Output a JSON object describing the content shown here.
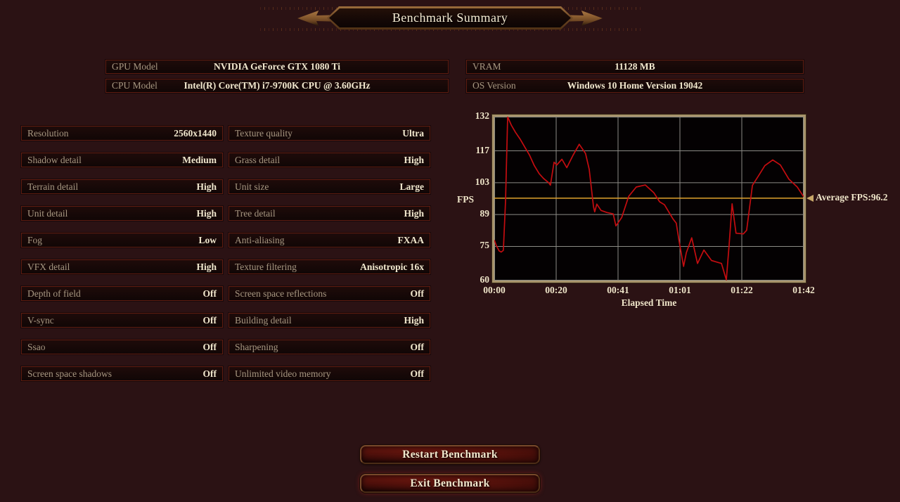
{
  "header": {
    "title": "Benchmark Summary"
  },
  "system_info": {
    "left": [
      {
        "label": "GPU Model",
        "value": "NVIDIA GeForce GTX 1080 Ti"
      },
      {
        "label": "CPU Model",
        "value": "Intel(R) Core(TM) i7-9700K CPU @ 3.60GHz"
      }
    ],
    "right": [
      {
        "label": "VRAM",
        "value": "11128 MB"
      },
      {
        "label": "OS Version",
        "value": "Windows 10 Home Version 19042"
      }
    ]
  },
  "settings": {
    "left": [
      {
        "label": "Resolution",
        "value": "2560x1440"
      },
      {
        "label": "Shadow detail",
        "value": "Medium"
      },
      {
        "label": "Terrain detail",
        "value": "High"
      },
      {
        "label": "Unit detail",
        "value": "High"
      },
      {
        "label": "Fog",
        "value": "Low"
      },
      {
        "label": "VFX detail",
        "value": "High"
      },
      {
        "label": "Depth of field",
        "value": "Off"
      },
      {
        "label": "V-sync",
        "value": "Off"
      },
      {
        "label": "Ssao",
        "value": "Off"
      },
      {
        "label": "Screen space shadows",
        "value": "Off"
      }
    ],
    "right": [
      {
        "label": "Texture quality",
        "value": "Ultra"
      },
      {
        "label": "Grass detail",
        "value": "High"
      },
      {
        "label": "Unit size",
        "value": "Large"
      },
      {
        "label": "Tree detail",
        "value": "High"
      },
      {
        "label": "Anti-aliasing",
        "value": "FXAA"
      },
      {
        "label": "Texture filtering",
        "value": "Anisotropic 16x"
      },
      {
        "label": "Screen space reflections",
        "value": "Off"
      },
      {
        "label": "Building detail",
        "value": "High"
      },
      {
        "label": "Sharpening",
        "value": "Off"
      },
      {
        "label": "Unlimited video memory",
        "value": "Off"
      }
    ]
  },
  "chart_data": {
    "type": "line",
    "title": "",
    "xlabel": "Elapsed Time",
    "ylabel": "FPS",
    "xticks": [
      "00:00",
      "00:20",
      "00:41",
      "01:01",
      "01:22",
      "01:42"
    ],
    "yticks": [
      132,
      117,
      103,
      89,
      75,
      60
    ],
    "ylim": [
      60,
      132
    ],
    "xlim_seconds": [
      0,
      102
    ],
    "grid": true,
    "legend": "none",
    "average_fps": 96.2,
    "average_label": "Average FPS:96.2",
    "line_color": "#c40d10",
    "average_color": "#e0a32e",
    "series": [
      {
        "name": "FPS",
        "points": [
          [
            0,
            77.8
          ],
          [
            0.7,
            75.3
          ],
          [
            1.6,
            73.0
          ],
          [
            2.3,
            72.5
          ],
          [
            3.0,
            73.3
          ],
          [
            3.7,
            95.0
          ],
          [
            4.4,
            132.0
          ],
          [
            5.6,
            128.3
          ],
          [
            7.0,
            125.1
          ],
          [
            8.6,
            122.0
          ],
          [
            10.2,
            118.3
          ],
          [
            11.6,
            115.2
          ],
          [
            13.2,
            110.5
          ],
          [
            14.8,
            107.0
          ],
          [
            16.2,
            104.9
          ],
          [
            17.9,
            103.0
          ],
          [
            18.5,
            101.9
          ],
          [
            19.7,
            112.0
          ],
          [
            20.6,
            110.8
          ],
          [
            22.3,
            113.3
          ],
          [
            23.9,
            109.6
          ],
          [
            26.0,
            115.2
          ],
          [
            28.0,
            119.9
          ],
          [
            30.1,
            115.8
          ],
          [
            31.3,
            108.9
          ],
          [
            32.7,
            92.4
          ],
          [
            33.1,
            90.2
          ],
          [
            33.8,
            93.6
          ],
          [
            35.2,
            90.8
          ],
          [
            37.1,
            89.9
          ],
          [
            39.2,
            89.3
          ],
          [
            40.1,
            84.0
          ],
          [
            42.0,
            87.7
          ],
          [
            44.3,
            97.0
          ],
          [
            46.8,
            101.1
          ],
          [
            49.8,
            102.0
          ],
          [
            52.6,
            98.6
          ],
          [
            54.5,
            94.6
          ],
          [
            56.1,
            93.3
          ],
          [
            58.9,
            87.1
          ],
          [
            60.0,
            85.2
          ],
          [
            61.0,
            76.8
          ],
          [
            62.4,
            66.2
          ],
          [
            63.3,
            72.2
          ],
          [
            65.1,
            78.8
          ],
          [
            67.0,
            67.5
          ],
          [
            69.1,
            73.4
          ],
          [
            71.6,
            68.8
          ],
          [
            74.9,
            67.5
          ],
          [
            76.5,
            60.3
          ],
          [
            77.4,
            75.3
          ],
          [
            78.4,
            93.7
          ],
          [
            79.7,
            80.8
          ],
          [
            82.1,
            80.5
          ],
          [
            83.2,
            82.1
          ],
          [
            85.1,
            101.8
          ],
          [
            87.0,
            105.8
          ],
          [
            89.2,
            110.5
          ],
          [
            91.8,
            113.0
          ],
          [
            94.3,
            110.8
          ],
          [
            97.1,
            104.6
          ],
          [
            99.9,
            101.1
          ],
          [
            102,
            96.8
          ]
        ]
      }
    ]
  },
  "buttons": {
    "restart": "Restart Benchmark",
    "exit": "Exit Benchmark"
  },
  "colors": {
    "background": "#2b1214",
    "row_border": "#5e1c10",
    "label_text": "#a79781",
    "value_text": "#f1e8ce",
    "chart_frame": "#a8946c",
    "fps_line": "#c40d10",
    "average_line": "#e0a32e",
    "gridline": "#8b8b85"
  }
}
